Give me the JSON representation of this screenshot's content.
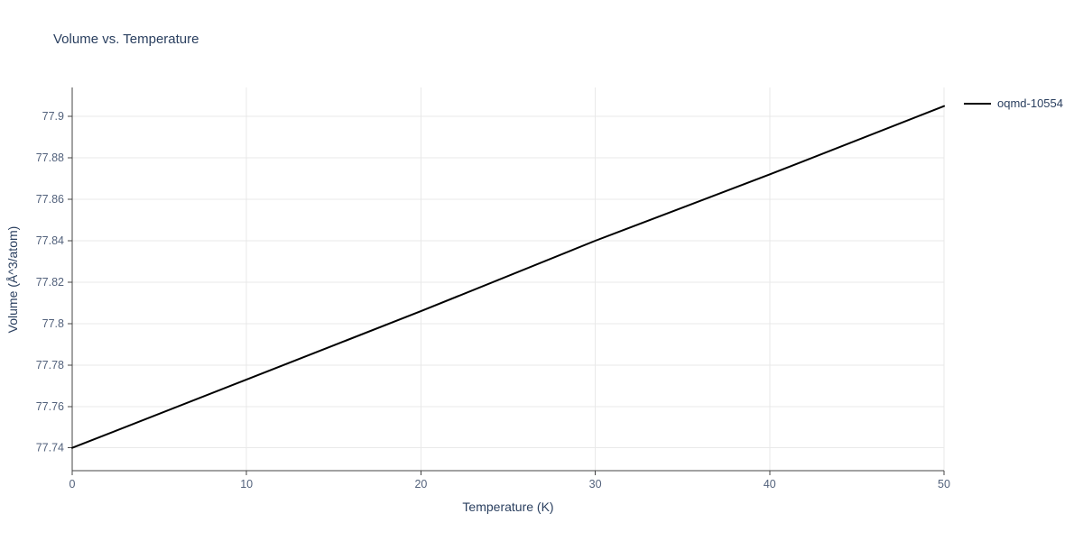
{
  "colors": {
    "line": "#000000",
    "grid": "#e9e9e9",
    "axis": "#444444",
    "tick_label": "#53627c",
    "text": "#2a3f5f"
  },
  "legend": {
    "label": "oqmd-10554"
  },
  "chart_data": {
    "type": "line",
    "title": "Volume vs. Temperature",
    "xlabel": "Temperature (K)",
    "ylabel": "Volume (Å^3/atom)",
    "xlim": [
      0,
      50
    ],
    "ylim": [
      77.729,
      77.914
    ],
    "x_ticks": [
      0,
      10,
      20,
      30,
      40,
      50
    ],
    "y_ticks": [
      77.74,
      77.76,
      77.78,
      77.8,
      77.82,
      77.84,
      77.86,
      77.88,
      77.9
    ],
    "grid": true,
    "legend_position": "right",
    "series": [
      {
        "name": "oqmd-10554",
        "color": "#000000",
        "x": [
          0,
          10,
          20,
          30,
          40,
          50
        ],
        "y": [
          77.74,
          77.773,
          77.806,
          77.84,
          77.872,
          77.905
        ]
      }
    ]
  }
}
